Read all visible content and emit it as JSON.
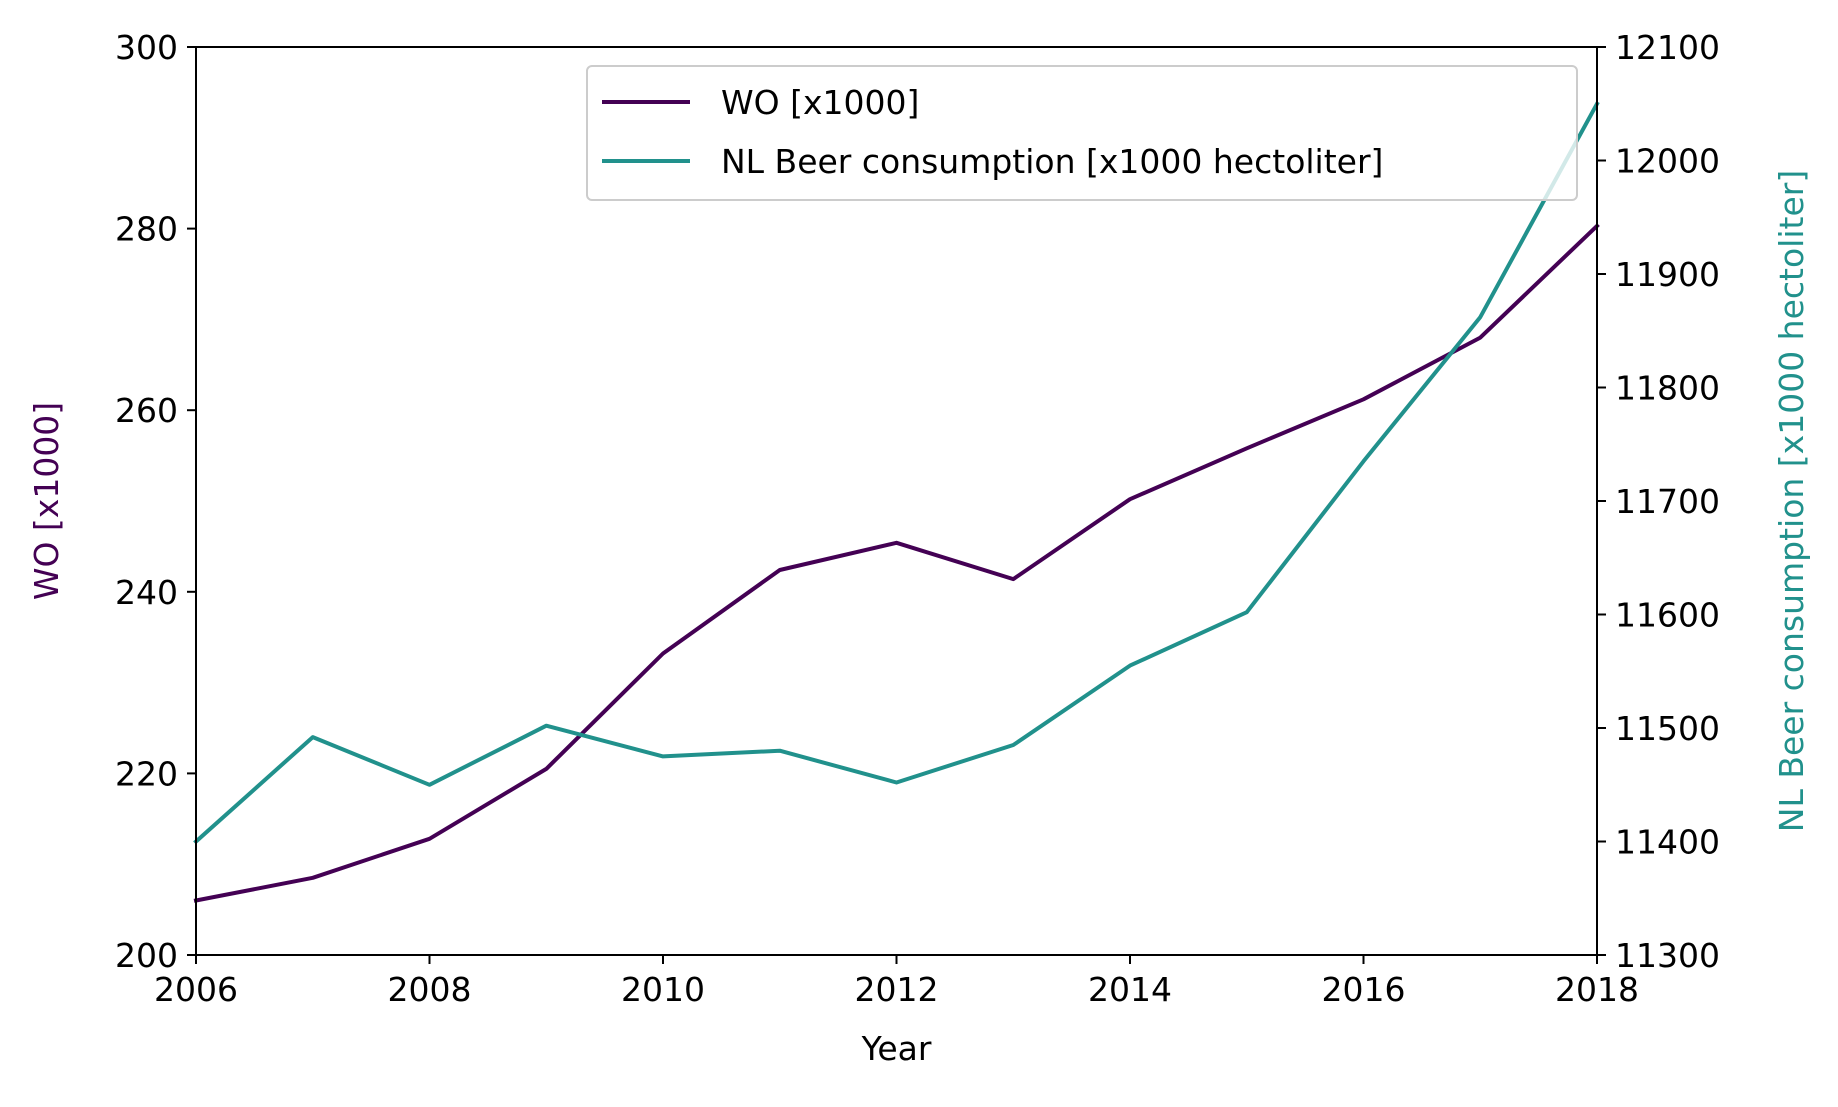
{
  "chart_data": {
    "type": "line",
    "title": "",
    "xlabel": "Year",
    "ylabel_left": "WO [x1000]",
    "ylabel_right": "NL Beer consumption [x1000 hectoliter]",
    "xlim": [
      2006,
      2018
    ],
    "ylim_left": [
      200,
      300
    ],
    "ylim_right": [
      11300,
      12100
    ],
    "x_ticks": [
      "2006",
      "2008",
      "2010",
      "2012",
      "2014",
      "2016",
      "2018"
    ],
    "y_ticks_left": [
      "200",
      "220",
      "240",
      "260",
      "280",
      "300"
    ],
    "y_ticks_right": [
      "11300",
      "11400",
      "11500",
      "11600",
      "11700",
      "11800",
      "11900",
      "12000",
      "12100"
    ],
    "legend_position": "top-right",
    "grid": false,
    "x": [
      2006,
      2007,
      2008,
      2009,
      2010,
      2011,
      2012,
      2013,
      2014,
      2015,
      2016,
      2017,
      2018
    ],
    "series": [
      {
        "name": "WO [x1000]",
        "axis": "left",
        "color": "#440154",
        "values": [
          206.0,
          208.5,
          212.8,
          220.5,
          233.2,
          242.4,
          245.4,
          241.4,
          250.2,
          255.8,
          261.2,
          268.0,
          280.3
        ]
      },
      {
        "name": "NL Beer consumption [x1000 hectoliter]",
        "axis": "right",
        "color": "#21918c",
        "values": [
          11400,
          11492,
          11450,
          11502,
          11475,
          11480,
          11452,
          11485,
          11555,
          11602,
          11735,
          11862,
          12050
        ]
      }
    ]
  }
}
